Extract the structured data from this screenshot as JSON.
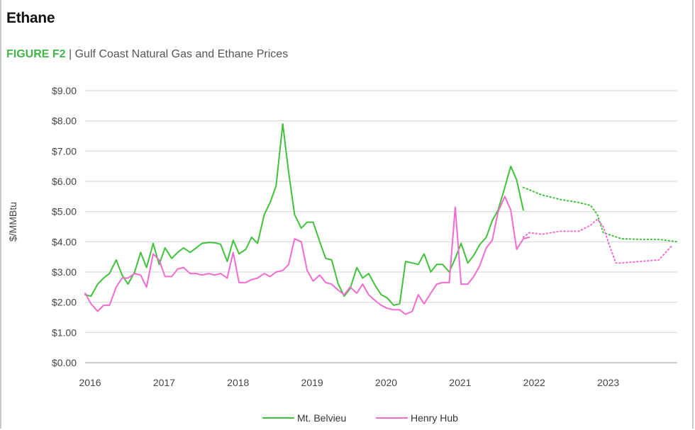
{
  "page": {
    "section_title": "Ethane",
    "figure_label": "FIGURE F2",
    "figure_separator": " | ",
    "figure_title": "Gulf Coast Natural Gas and Ethane Prices"
  },
  "chart_data": {
    "type": "line",
    "title": "Gulf Coast Natural Gas and Ethane Prices",
    "xlabel": "",
    "ylabel": "$/MMBtu",
    "xlim": [
      2016,
      2024
    ],
    "ylim": [
      0,
      9
    ],
    "y_ticks": [
      0,
      1,
      2,
      3,
      4,
      5,
      6,
      7,
      8,
      9
    ],
    "y_tick_labels": [
      "$0.00",
      "$1.00",
      "$2.00",
      "$3.00",
      "$4.00",
      "$5.00",
      "$6.00",
      "$7.00",
      "$8.00",
      "$9.00"
    ],
    "x_ticks": [
      2016,
      2017,
      2018,
      2019,
      2020,
      2021,
      2022,
      2023
    ],
    "x_tick_labels": [
      "2016",
      "2017",
      "2018",
      "2019",
      "2020",
      "2021",
      "2022",
      "2023"
    ],
    "grid": "horizontal",
    "legend_position": "bottom-center",
    "series": [
      {
        "name": "Mt. Belvieu",
        "color": "#3fc23a",
        "style": "solid",
        "x": [
          2016.0,
          2016.08,
          2016.17,
          2016.25,
          2016.33,
          2016.42,
          2016.5,
          2016.58,
          2016.67,
          2016.75,
          2016.83,
          2016.92,
          2017.0,
          2017.08,
          2017.17,
          2017.25,
          2017.33,
          2017.42,
          2017.5,
          2017.58,
          2017.67,
          2017.75,
          2017.83,
          2017.92,
          2018.0,
          2018.08,
          2018.17,
          2018.25,
          2018.33,
          2018.42,
          2018.5,
          2018.58,
          2018.67,
          2018.75,
          2018.83,
          2018.92,
          2019.0,
          2019.08,
          2019.17,
          2019.25,
          2019.33,
          2019.42,
          2019.5,
          2019.58,
          2019.67,
          2019.75,
          2019.83,
          2019.92,
          2020.0,
          2020.08,
          2020.17,
          2020.25,
          2020.33,
          2020.42,
          2020.5,
          2020.58,
          2020.67,
          2020.75,
          2020.83,
          2020.92,
          2021.0,
          2021.08,
          2021.17,
          2021.25,
          2021.33,
          2021.42,
          2021.5,
          2021.58,
          2021.67,
          2021.75,
          2021.83,
          2021.92
        ],
        "values": [
          2.25,
          2.2,
          2.6,
          2.8,
          2.95,
          3.4,
          2.9,
          2.6,
          3.0,
          3.65,
          3.15,
          3.95,
          3.25,
          3.8,
          3.45,
          3.65,
          3.8,
          3.65,
          3.8,
          3.95,
          3.98,
          3.97,
          3.92,
          3.35,
          4.05,
          3.6,
          3.75,
          4.15,
          3.95,
          4.9,
          5.3,
          5.85,
          7.9,
          6.3,
          4.9,
          4.45,
          4.65,
          4.65,
          4.0,
          3.45,
          3.4,
          2.6,
          2.2,
          2.45,
          3.15,
          2.8,
          2.95,
          2.55,
          2.25,
          2.15,
          1.9,
          1.95,
          3.35,
          3.3,
          3.25,
          3.6,
          3.0,
          3.25,
          3.25,
          3.0,
          3.45,
          3.95,
          3.3,
          3.55,
          3.9,
          4.15,
          4.7,
          5.05,
          5.8,
          6.5,
          6.05,
          5.05
        ]
      },
      {
        "name": "Henry Hub",
        "color": "#f26bd1",
        "style": "solid",
        "x": [
          2016.0,
          2016.08,
          2016.17,
          2016.25,
          2016.33,
          2016.42,
          2016.5,
          2016.58,
          2016.67,
          2016.75,
          2016.83,
          2016.92,
          2017.0,
          2017.08,
          2017.17,
          2017.25,
          2017.33,
          2017.42,
          2017.5,
          2017.58,
          2017.67,
          2017.75,
          2017.83,
          2017.92,
          2018.0,
          2018.08,
          2018.17,
          2018.25,
          2018.33,
          2018.42,
          2018.5,
          2018.58,
          2018.67,
          2018.75,
          2018.83,
          2018.92,
          2019.0,
          2019.08,
          2019.17,
          2019.25,
          2019.33,
          2019.42,
          2019.5,
          2019.58,
          2019.67,
          2019.75,
          2019.83,
          2019.92,
          2020.0,
          2020.08,
          2020.17,
          2020.25,
          2020.33,
          2020.42,
          2020.5,
          2020.58,
          2020.67,
          2020.75,
          2020.83,
          2020.92,
          2021.0,
          2021.08,
          2021.17,
          2021.25,
          2021.33,
          2021.42,
          2021.5,
          2021.58,
          2021.67,
          2021.75,
          2021.83,
          2021.92,
          2022.0
        ],
        "values": [
          2.3,
          1.95,
          1.7,
          1.9,
          1.9,
          2.5,
          2.8,
          2.8,
          2.95,
          2.9,
          2.5,
          3.6,
          3.4,
          2.85,
          2.85,
          3.1,
          3.15,
          2.95,
          2.95,
          2.9,
          2.95,
          2.9,
          2.95,
          2.8,
          3.65,
          2.65,
          2.65,
          2.75,
          2.8,
          2.95,
          2.85,
          3.0,
          3.05,
          3.25,
          4.1,
          4.0,
          3.05,
          2.7,
          2.9,
          2.65,
          2.6,
          2.4,
          2.25,
          2.5,
          2.3,
          2.6,
          2.25,
          2.05,
          1.9,
          1.8,
          1.75,
          1.75,
          1.6,
          1.7,
          2.25,
          1.95,
          2.3,
          2.6,
          2.65,
          2.65,
          5.15,
          2.6,
          2.6,
          2.85,
          3.2,
          3.8,
          4.05,
          5.0,
          5.5,
          5.05,
          3.75,
          4.1,
          4.15
        ]
      },
      {
        "color": "#3fc23a",
        "style": "dotted",
        "x": [
          2021.92,
          2022.17,
          2022.42,
          2022.67,
          2022.83,
          2022.92,
          2023.0,
          2023.25,
          2023.5,
          2023.75,
          2024.0
        ],
        "values": [
          5.8,
          5.55,
          5.4,
          5.3,
          5.2,
          4.9,
          4.3,
          4.1,
          4.08,
          4.08,
          4.0
        ]
      },
      {
        "color": "#f26bd1",
        "style": "dotted",
        "x": [
          2021.92,
          2022.0,
          2022.17,
          2022.42,
          2022.67,
          2022.83,
          2022.92,
          2023.0,
          2023.08,
          2023.17,
          2023.25,
          2023.5,
          2023.75,
          2023.92
        ],
        "values": [
          4.15,
          4.3,
          4.25,
          4.35,
          4.35,
          4.55,
          4.75,
          4.5,
          3.9,
          3.3,
          3.3,
          3.35,
          3.4,
          3.85
        ]
      }
    ],
    "legend": [
      {
        "label": "Mt. Belvieu",
        "color": "#3fc23a"
      },
      {
        "label": "Henry Hub",
        "color": "#f26bd1"
      }
    ]
  }
}
